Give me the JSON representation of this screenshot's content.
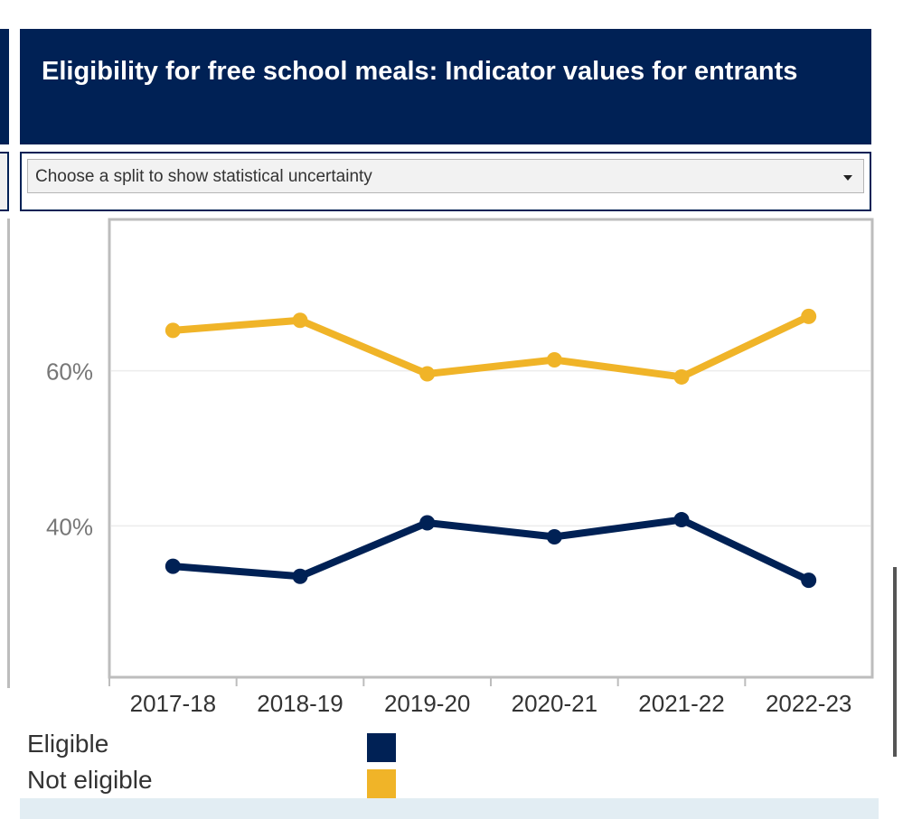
{
  "header": {
    "title": "Eligibility for free school meals: Indicator values for entrants"
  },
  "split_selector": {
    "placeholder": "Choose a split to show statistical uncertainty"
  },
  "chart_data": {
    "type": "line",
    "title": "Eligibility for free school meals: Indicator values for entrants",
    "categories": [
      "2017-18",
      "2018-19",
      "2019-20",
      "2020-21",
      "2021-22",
      "2022-23"
    ],
    "series": [
      {
        "name": "Eligible",
        "color": "#002155",
        "values": [
          34.8,
          33.5,
          40.4,
          38.6,
          40.8,
          33.0
        ]
      },
      {
        "name": "Not eligible",
        "color": "#f0b428",
        "values": [
          65.2,
          66.5,
          59.6,
          61.4,
          59.2,
          67.0
        ]
      }
    ],
    "y_ticks": [
      "40%",
      "60%"
    ],
    "y_tick_values": [
      40,
      60
    ],
    "ylim": [
      20.5,
      79.5
    ],
    "xlabel": "",
    "ylabel": "",
    "grid": true,
    "legend": "bottom-left"
  },
  "legend": {
    "items": [
      {
        "label": "Eligible",
        "color": "#002155"
      },
      {
        "label": "Not eligible",
        "color": "#f0b428"
      }
    ]
  },
  "colors": {
    "navy": "#002155",
    "gold": "#f0b428",
    "axis": "#bdbdbd",
    "text": "#333333"
  }
}
